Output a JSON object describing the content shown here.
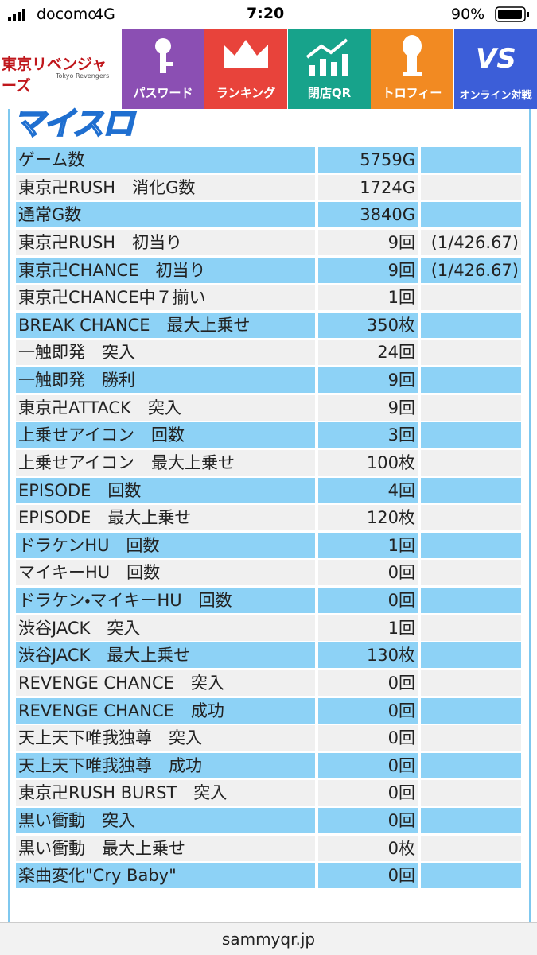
{
  "status_bar": {
    "carrier": "docomo",
    "network": "4G",
    "time": "7:20",
    "battery": "90%"
  },
  "nav": {
    "logo": "東京リベンジャーズ",
    "logo_sub": "Tokyo Revengers",
    "items": [
      {
        "label": "パスワード"
      },
      {
        "label": "ランキング"
      },
      {
        "label": "閉店QR"
      },
      {
        "label": "トロフィー"
      },
      {
        "label": "オンライン対戦",
        "badge": "VS"
      }
    ]
  },
  "section": {
    "title": "マイスロ"
  },
  "table": {
    "rows": [
      {
        "label": "ゲーム数",
        "value": "5759G"
      },
      {
        "label": "東京卍RUSH　消化G数",
        "value": "1724G"
      },
      {
        "label": "通常G数",
        "value": "3840G"
      },
      {
        "label": "東京卍RUSH　初当り",
        "value": "9回",
        "ratio": "(1/426.67)"
      },
      {
        "label": "東京卍CHANCE　初当り",
        "value": "9回",
        "ratio": "(1/426.67)"
      },
      {
        "label": "東京卍CHANCE中７揃い",
        "value": "1回"
      },
      {
        "label": "BREAK CHANCE　最大上乗せ",
        "value": "350枚"
      },
      {
        "label": "一触即発　突入",
        "value": "24回"
      },
      {
        "label": "一触即発　勝利",
        "value": "9回"
      },
      {
        "label": "東京卍ATTACK　突入",
        "value": "9回"
      },
      {
        "label": "上乗せアイコン　回数",
        "value": "3回"
      },
      {
        "label": "上乗せアイコン　最大上乗せ",
        "value": "100枚"
      },
      {
        "label": "EPISODE　回数",
        "value": "4回"
      },
      {
        "label": "EPISODE　最大上乗せ",
        "value": "120枚"
      },
      {
        "label": "ドラケンHU　回数",
        "value": "1回"
      },
      {
        "label": "マイキーHU　回数",
        "value": "0回"
      },
      {
        "label": "ドラケン・マイキーHU　回数",
        "value": "0回"
      },
      {
        "label": "渋谷JACK　突入",
        "value": "1回"
      },
      {
        "label": "渋谷JACK　最大上乗せ",
        "value": "130枚"
      },
      {
        "label": "REVENGE CHANCE　突入",
        "value": "0回"
      },
      {
        "label": "REVENGE CHANCE　成功",
        "value": "0回"
      },
      {
        "label": "天上天下唯我独尊　突入",
        "value": "0回"
      },
      {
        "label": "天上天下唯我独尊　成功",
        "value": "0回"
      },
      {
        "label": "東京卍RUSH BURST　突入",
        "value": "0回"
      },
      {
        "label": "黒い衝動　突入",
        "value": "0回"
      },
      {
        "label": "黒い衝動　最大上乗せ",
        "value": "0枚"
      },
      {
        "label": "楽曲変化\"Cry Baby\"",
        "value": "0回"
      }
    ]
  },
  "footer": {
    "url": "sammyqr.jp"
  }
}
